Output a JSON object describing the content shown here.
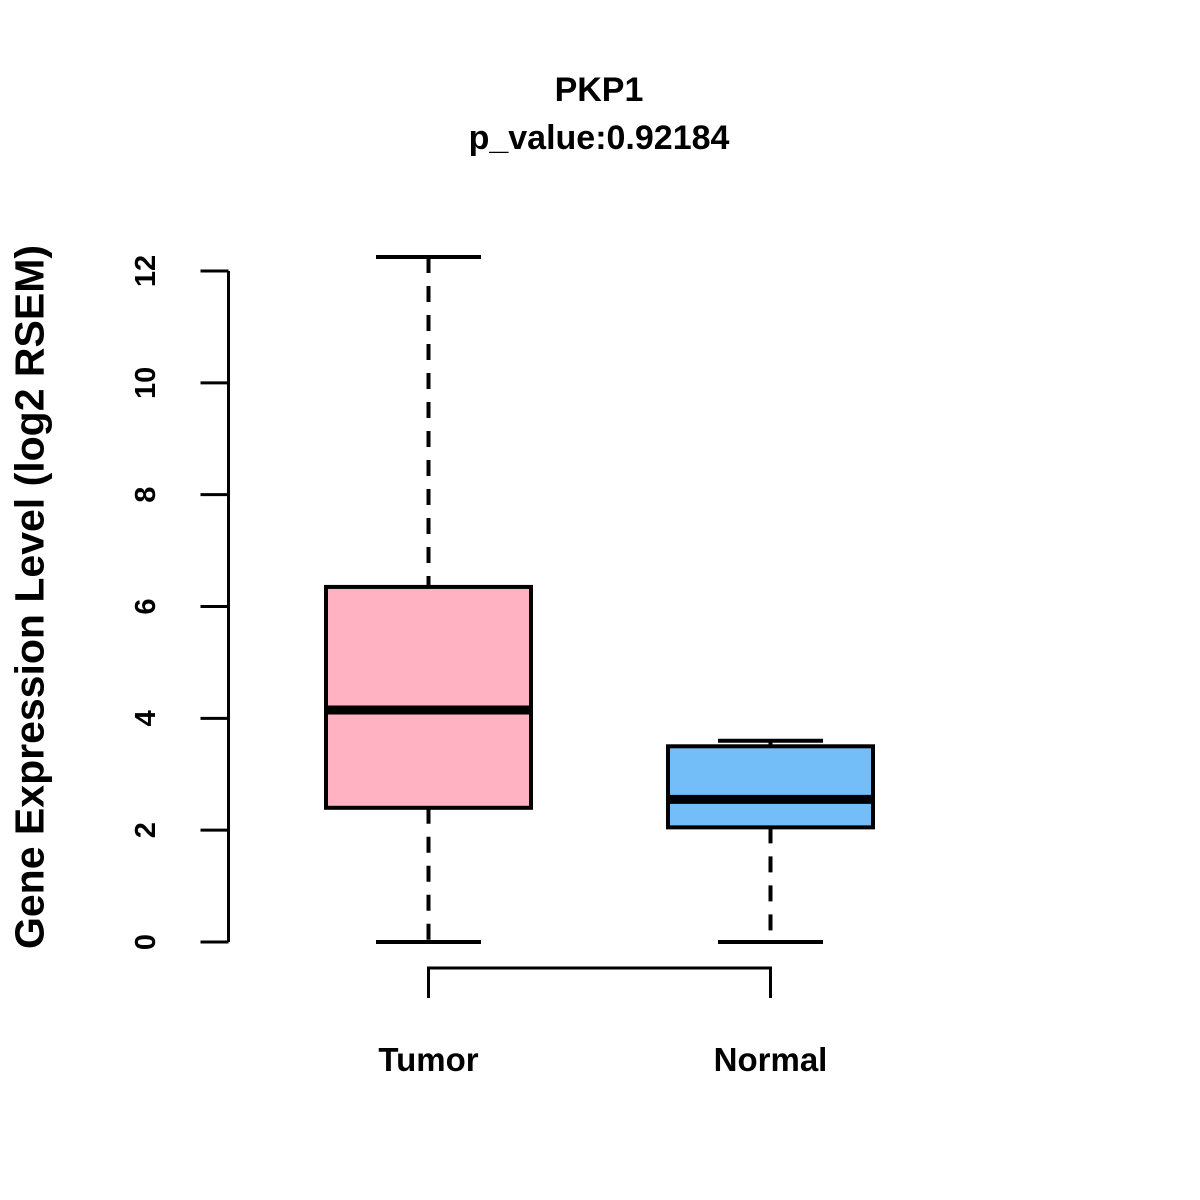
{
  "figure": {
    "background": "#FFFFFF",
    "axis_color": "#000000"
  },
  "chart_data": {
    "type": "boxplot",
    "title": "PKP1",
    "subtitle": "p_value:0.92184",
    "ylabel": "Gene Expression Level (log2 RSEM)",
    "xlabel": "",
    "ylim": [
      0,
      12.25
    ],
    "yticks": [
      "0",
      "2",
      "4",
      "6",
      "8",
      "10",
      "12"
    ],
    "grid": false,
    "legend": "none",
    "categories": [
      "Tumor",
      "Normal"
    ],
    "series": [
      {
        "name": "Tumor",
        "fill": "#FFB2C1",
        "lower_whisker": 0,
        "q1": 2.4,
        "median": 4.15,
        "q3": 6.35,
        "upper_whisker": 12.25
      },
      {
        "name": "Normal",
        "fill": "#73BDF8",
        "lower_whisker": 0,
        "q1": 2.05,
        "median": 2.55,
        "q3": 3.5,
        "upper_whisker": 3.6
      }
    ]
  }
}
